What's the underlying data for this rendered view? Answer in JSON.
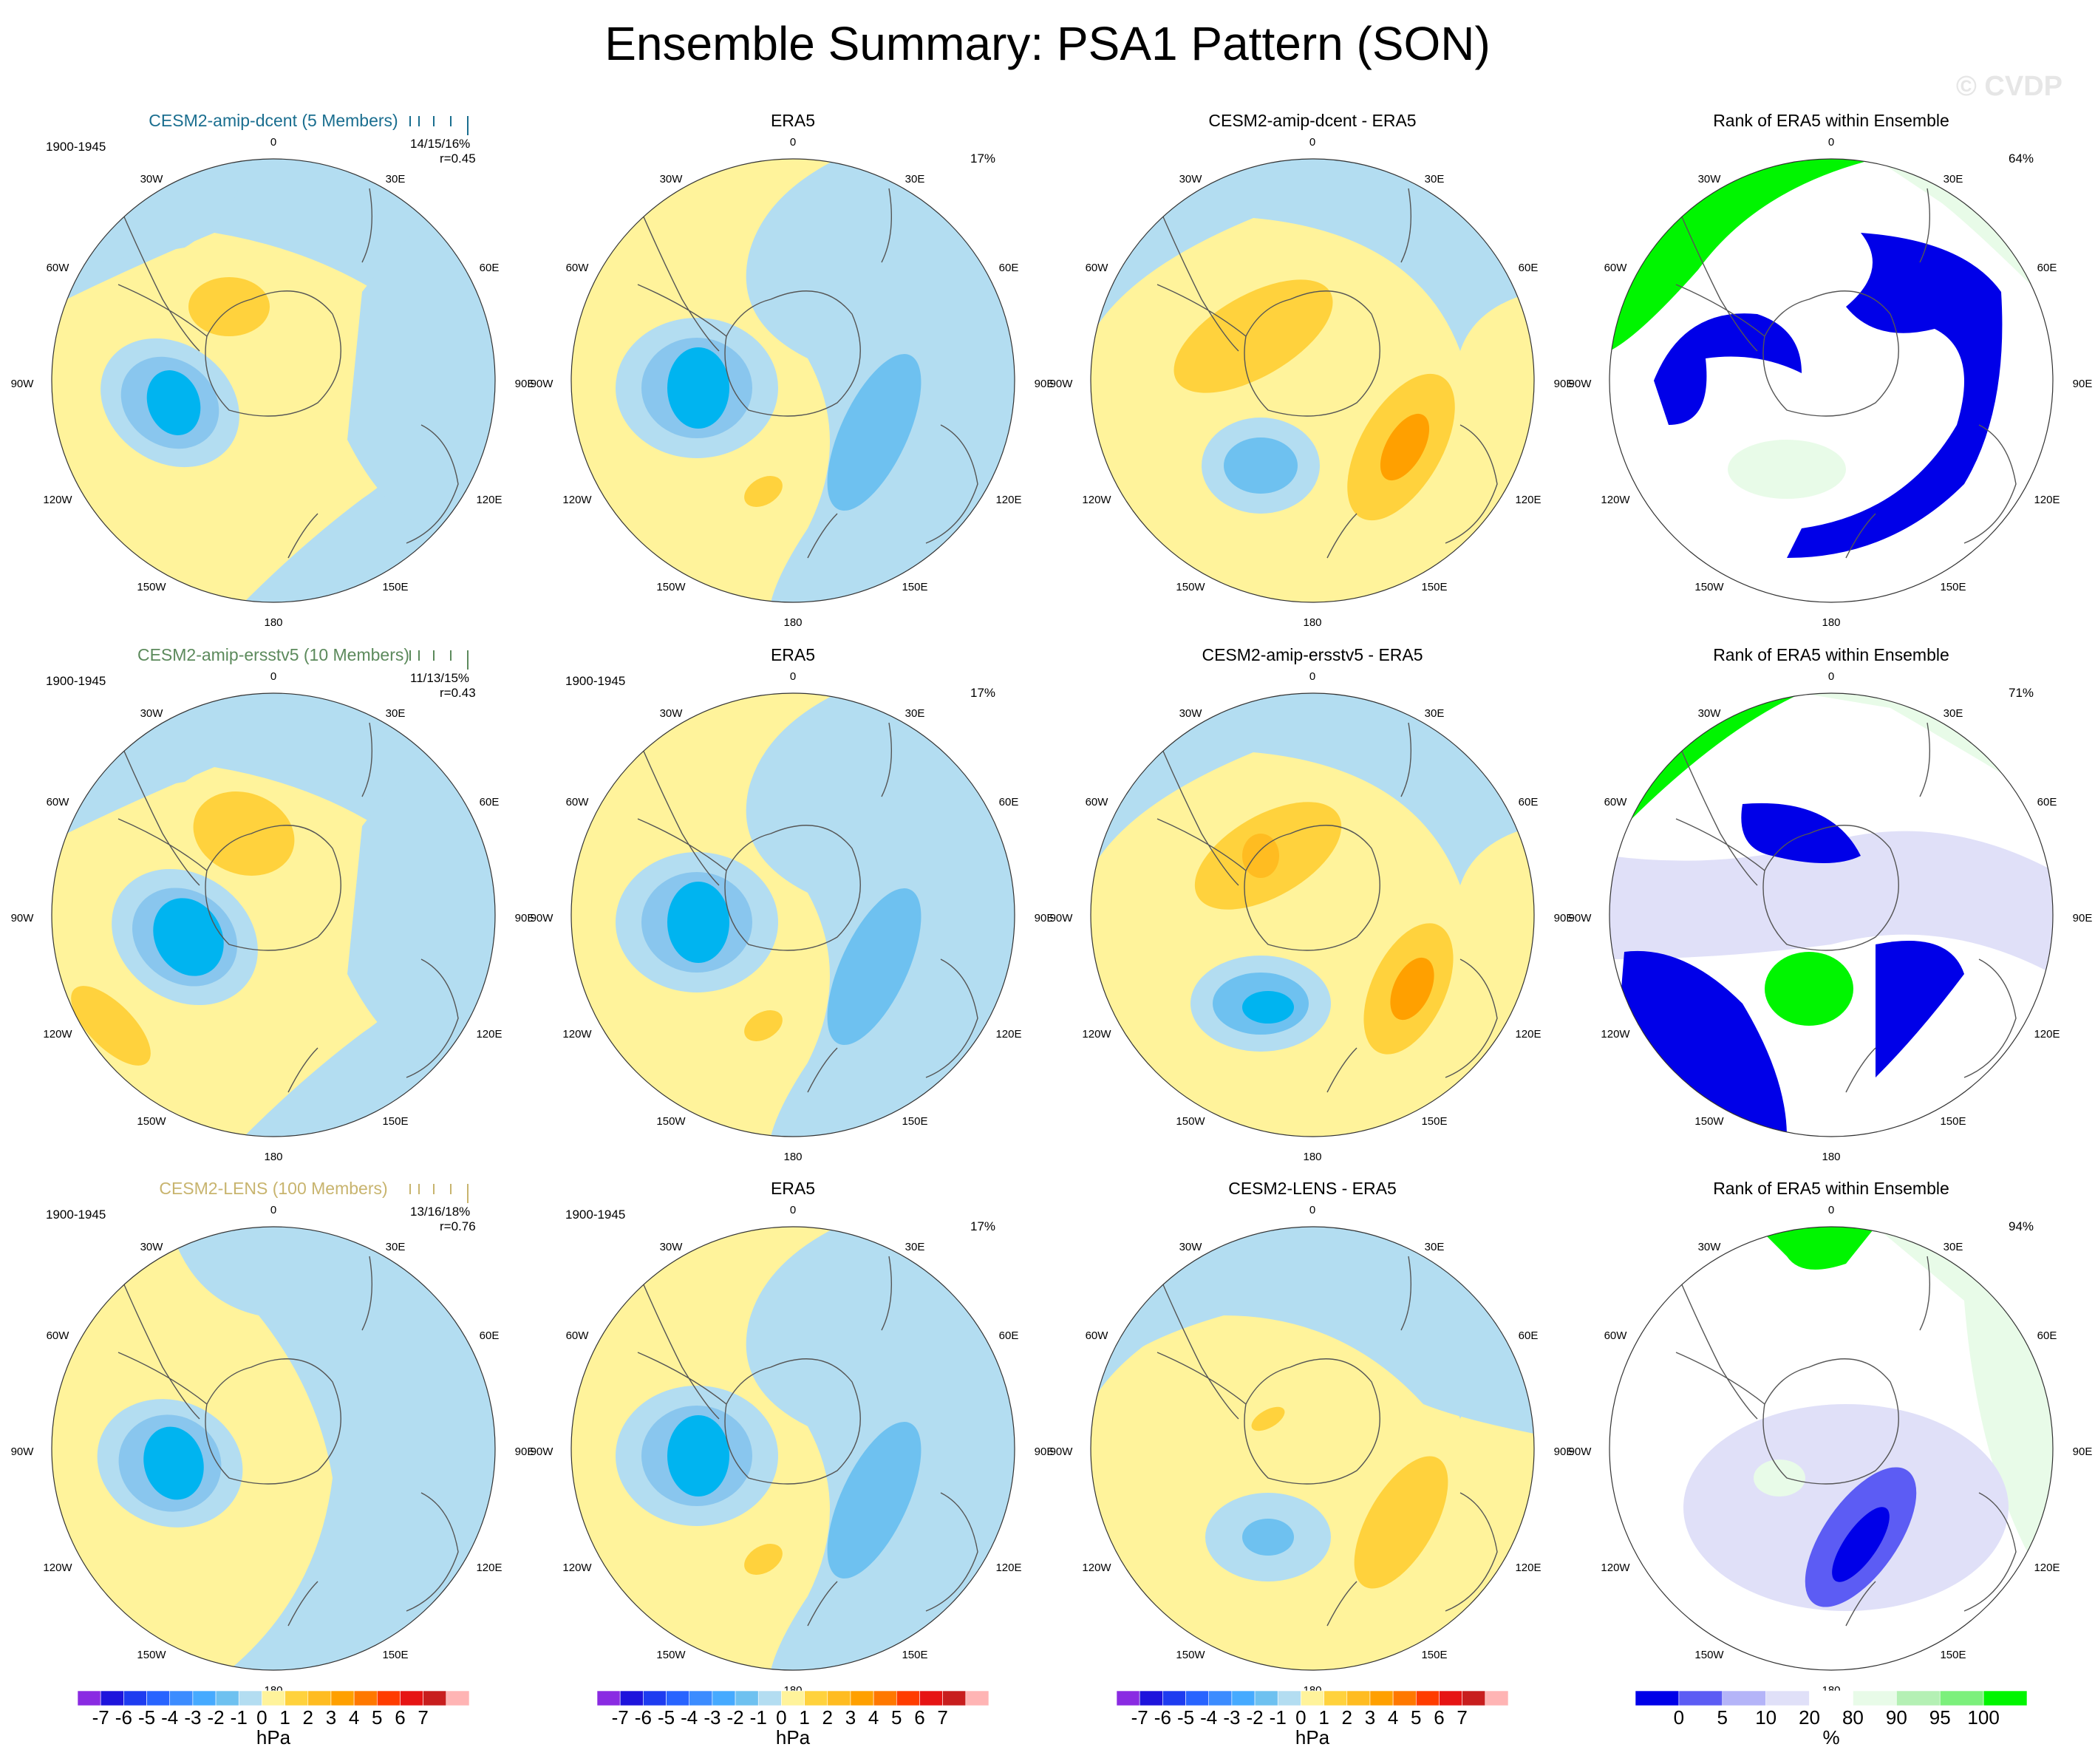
{
  "title": "Ensemble Summary: PSA1 Pattern (SON)",
  "watermark": "© CVDP",
  "colors": {
    "ocean": "#b3ddf1",
    "neg1": "#b3ddf1",
    "neg2": "#89c6ee",
    "neg3": "#6ec1f0",
    "neg4": "#00b4f0",
    "pos1": "#fff39b",
    "pos2": "#ffd23d",
    "pos3": "#ffbc21",
    "pos4": "#ffa000",
    "rank_low": "#0000e8",
    "rank_mid": "#5c5cf4",
    "rank_light": "#e0e0f8",
    "rank_green": "#00f500",
    "rank_lightgreen": "#e8fbe8"
  },
  "rows": [
    {
      "model_title": "CESM2-amip-dcent (5 Members)",
      "model_color": "#1a6e8f",
      "period": "1900-1945",
      "stats": "14/15/16%",
      "corr": "r=0.45",
      "obs_title": "ERA5",
      "obs_period": "",
      "obs_pct": "17%",
      "diff_title": "CESM2-amip-dcent - ERA5",
      "rank_title": "Rank of ERA5 within Ensemble",
      "rank_pct": "64%"
    },
    {
      "model_title": "CESM2-amip-ersstv5 (10 Members)",
      "model_color": "#5c8a5c",
      "period": "1900-1945",
      "stats": "11/13/15%",
      "corr": "r=0.43",
      "obs_title": "ERA5",
      "obs_period": "1900-1945",
      "obs_pct": "17%",
      "diff_title": "CESM2-amip-ersstv5 - ERA5",
      "rank_title": "Rank of ERA5 within Ensemble",
      "rank_pct": "71%"
    },
    {
      "model_title": "CESM2-LENS (100 Members)",
      "model_color": "#c8b46e",
      "period": "1900-1945",
      "stats": "13/16/18%",
      "corr": "r=0.76",
      "obs_title": "ERA5",
      "obs_period": "1900-1945",
      "obs_pct": "17%",
      "diff_title": "CESM2-LENS - ERA5",
      "rank_title": "Rank of ERA5 within Ensemble",
      "rank_pct": "94%"
    }
  ],
  "lon_labels": {
    "top": "0",
    "bottom": "180",
    "l30": "30W",
    "r30": "30E",
    "l60": "60W",
    "r60": "60E",
    "l90": "90W",
    "r90": "90E",
    "l120": "120W",
    "r120": "120E",
    "l150": "150W",
    "r150": "150E"
  },
  "chart_data": {
    "type": "heatmap",
    "description_levels": "contour levels in hPa",
    "hpa_colorbar": {
      "unit": "hPa",
      "tick_labels": [
        "-7",
        "-6",
        "-5",
        "-4",
        "-3",
        "-2",
        "-1",
        "0",
        "1",
        "2",
        "3",
        "4",
        "5",
        "6",
        "7"
      ],
      "colors": [
        "#8a2be2",
        "#1e14dc",
        "#1e3cf0",
        "#2864ff",
        "#3c8cff",
        "#46aaff",
        "#6ec1f0",
        "#b3ddf1",
        "#fff39b",
        "#ffd23d",
        "#ffbc21",
        "#ffa000",
        "#ff7800",
        "#ff3c00",
        "#e61414",
        "#c81e1e",
        "#ffb4b4"
      ]
    },
    "rank_colorbar": {
      "unit": "%",
      "tick_labels": [
        "0",
        "5",
        "10",
        "20",
        "80",
        "90",
        "95",
        "100"
      ],
      "colors": [
        "#0000e8",
        "#5c5cf4",
        "#b4b4f8",
        "#e0e0f8",
        "#ffffff",
        "#e8fbe8",
        "#b4f0b4",
        "#7cf07c",
        "#00f500"
      ]
    },
    "colorbars": [
      "hPa",
      "hPa",
      "hPa",
      "%"
    ]
  }
}
